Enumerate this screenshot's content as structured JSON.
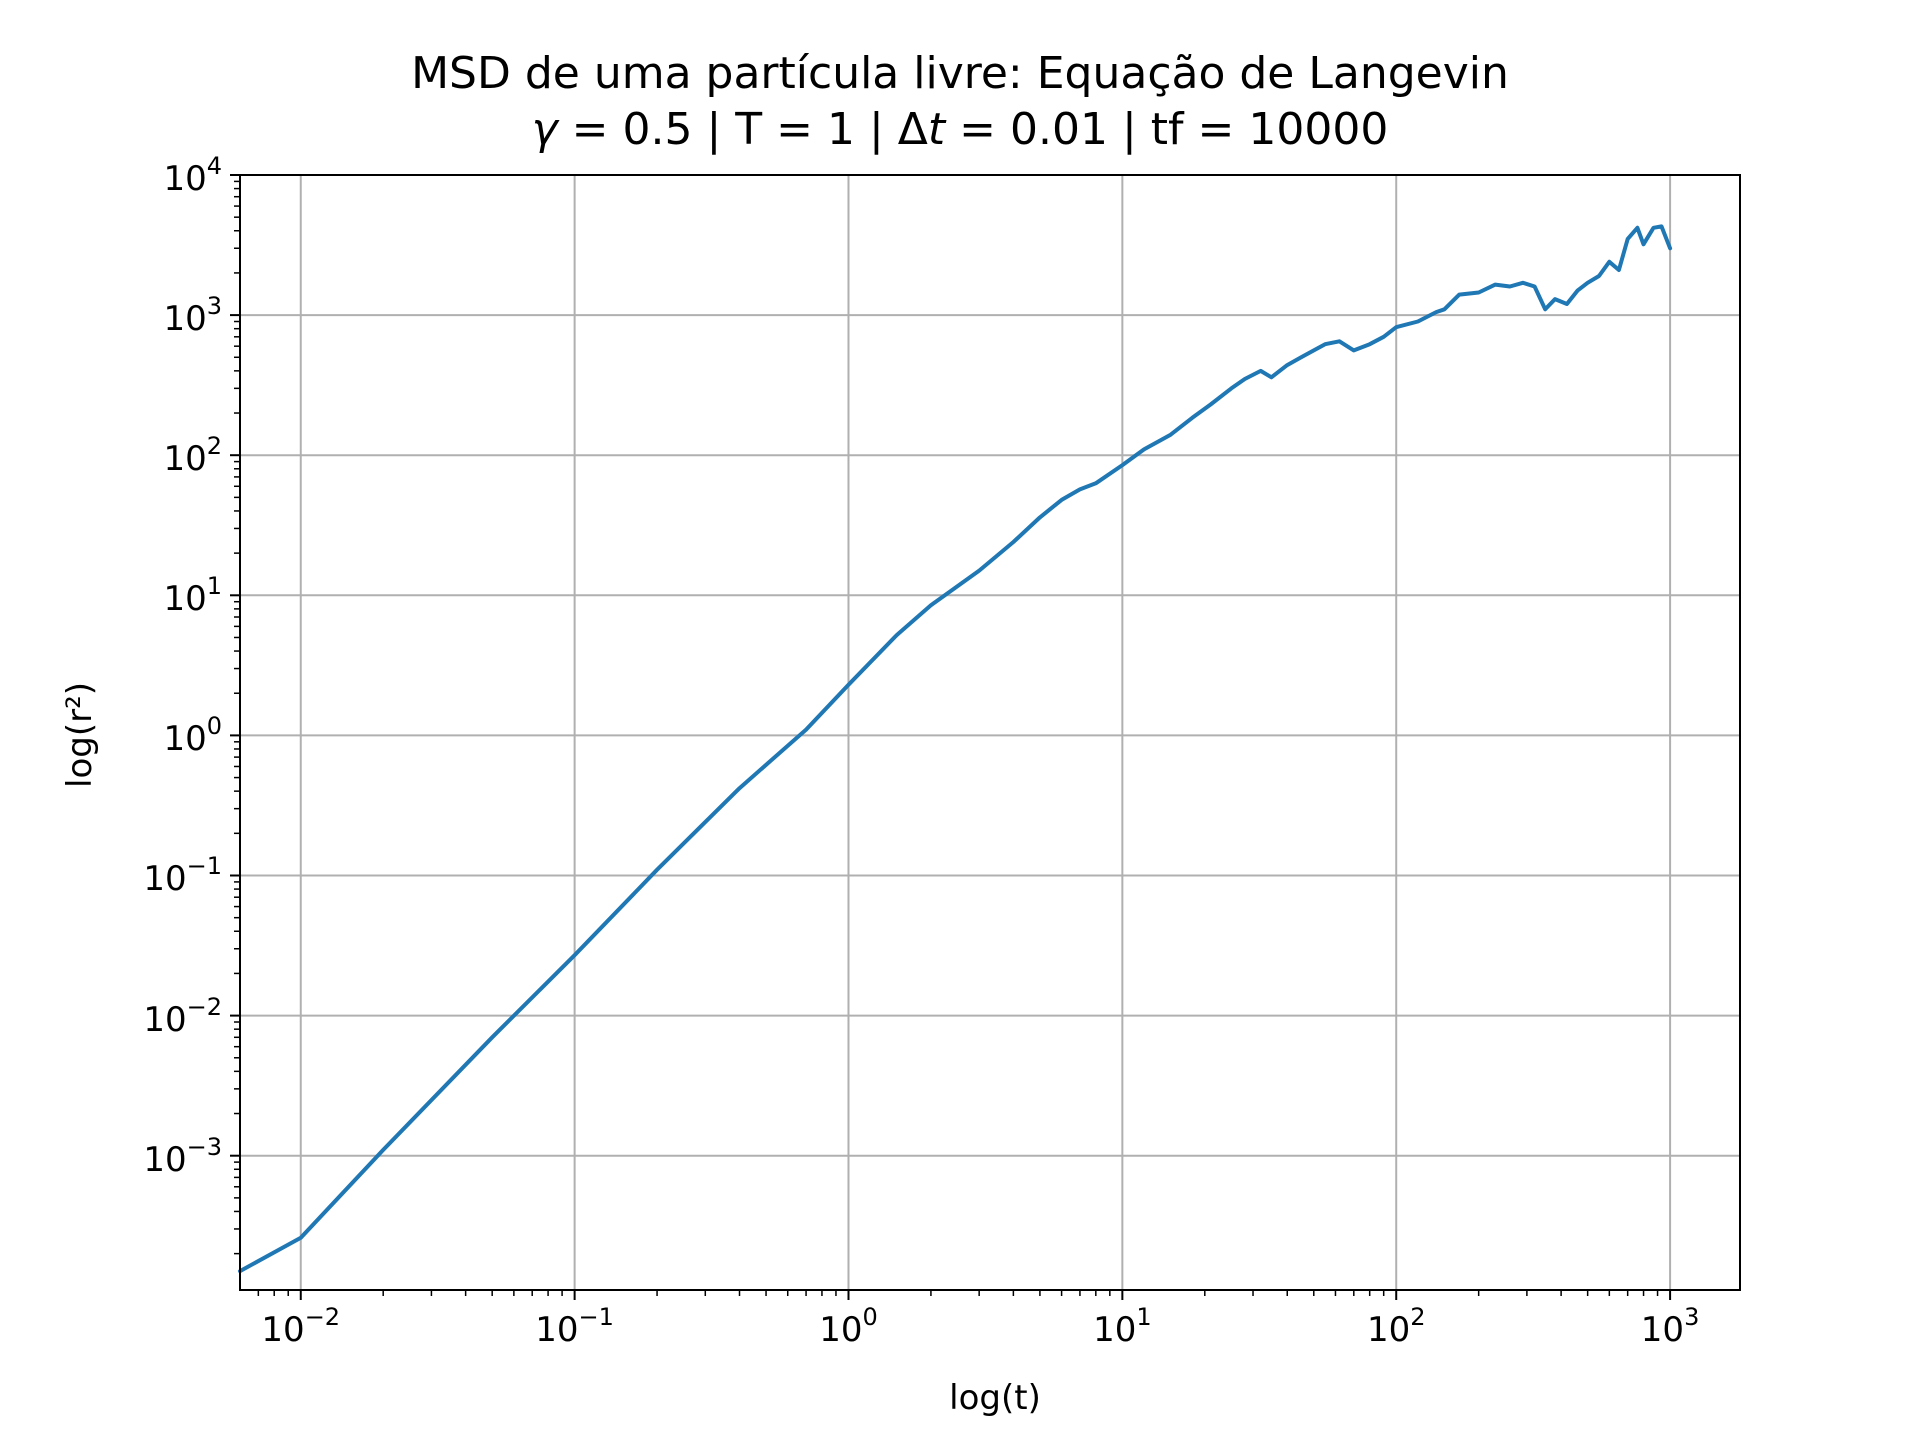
{
  "chart_data": {
    "type": "line",
    "title": "MSD de uma partícula livre: Equação de Langevin",
    "subtitle": "γ = 0.5 | T = 1 | Δt = 0.01 | tf = 10000",
    "subtitle_parts": {
      "gamma_symbol": "γ",
      "part1": " = 0.5 | T = 1 | Δ",
      "t_symbol": "t",
      "part2": " = 0.01 | tf = 10000"
    },
    "xlabel": "log(t)",
    "ylabel": "log(r²)",
    "xscale": "log",
    "yscale": "log",
    "xlim": [
      0.006,
      1800
    ],
    "ylim": [
      0.00011,
      10000
    ],
    "grid": true,
    "line_color": "#1f77b4",
    "x_ticks": [
      {
        "value": 0.01,
        "base": "10",
        "exp": "−2"
      },
      {
        "value": 0.1,
        "base": "10",
        "exp": "−1"
      },
      {
        "value": 1,
        "base": "10",
        "exp": "0"
      },
      {
        "value": 10,
        "base": "10",
        "exp": "1"
      },
      {
        "value": 100,
        "base": "10",
        "exp": "2"
      },
      {
        "value": 1000,
        "base": "10",
        "exp": "3"
      }
    ],
    "y_ticks": [
      {
        "value": 0.001,
        "base": "10",
        "exp": "−3"
      },
      {
        "value": 0.01,
        "base": "10",
        "exp": "−2"
      },
      {
        "value": 0.1,
        "base": "10",
        "exp": "−1"
      },
      {
        "value": 1,
        "base": "10",
        "exp": "0"
      },
      {
        "value": 10,
        "base": "10",
        "exp": "1"
      },
      {
        "value": 100,
        "base": "10",
        "exp": "2"
      },
      {
        "value": 1000,
        "base": "10",
        "exp": "3"
      },
      {
        "value": 10000,
        "base": "10",
        "exp": "4"
      }
    ],
    "series": [
      {
        "x": [
          0.006,
          0.01,
          0.02,
          0.05,
          0.1,
          0.2,
          0.4,
          0.7,
          1.0,
          1.5,
          2.0,
          3.0,
          4.0,
          5.0,
          6.0,
          7.0,
          8.0,
          10.0,
          12.0,
          15.0,
          18.0,
          21.0,
          25.0,
          28.0,
          32.0,
          35.0,
          40.0,
          45.0,
          50.0,
          55.0,
          62.0,
          70.0,
          80.0,
          90.0,
          100.0,
          120.0,
          140.0,
          150.0,
          170.0,
          200.0,
          230.0,
          260.0,
          290.0,
          320.0,
          350.0,
          380.0,
          420.0,
          460.0,
          500.0,
          550.0,
          600.0,
          650.0,
          700.0,
          760.0,
          800.0,
          870.0,
          930.0,
          1000.0
        ],
        "y": [
          0.00015,
          0.00026,
          0.0011,
          0.007,
          0.027,
          0.11,
          0.42,
          1.1,
          2.3,
          5.2,
          8.5,
          15,
          24,
          36,
          48,
          57,
          63,
          85,
          110,
          140,
          185,
          230,
          300,
          350,
          400,
          360,
          440,
          500,
          560,
          620,
          650,
          560,
          620,
          700,
          820,
          900,
          1050,
          1100,
          1400,
          1450,
          1650,
          1600,
          1700,
          1600,
          1100,
          1300,
          1200,
          1500,
          1700,
          1900,
          2400,
          2100,
          3500,
          4200,
          3200,
          4200,
          4300,
          3000
        ]
      }
    ]
  }
}
